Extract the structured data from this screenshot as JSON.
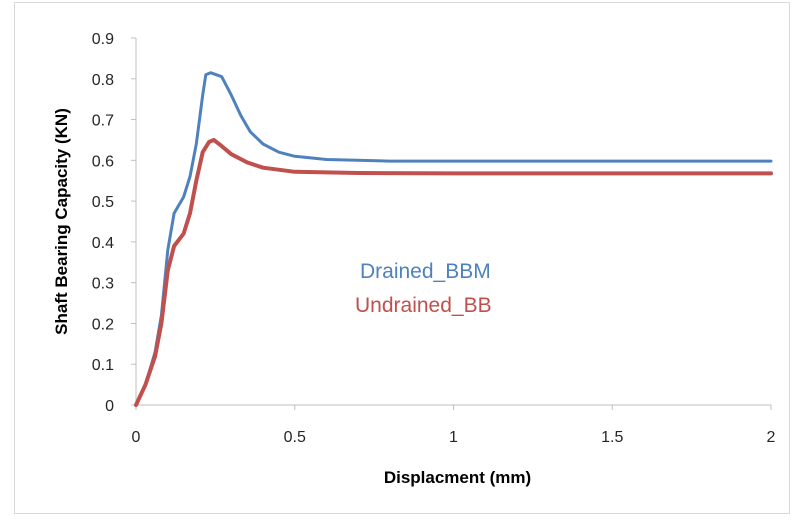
{
  "chart_data": {
    "type": "line",
    "title": "",
    "xlabel": "Displacment (mm)",
    "ylabel": "Shaft Bearing Capacity (KN)",
    "xlim": [
      0,
      2
    ],
    "ylim": [
      0,
      0.9
    ],
    "xticks": [
      0,
      0.5,
      1,
      1.5,
      2
    ],
    "xtick_labels": [
      "0",
      "0.5",
      "1",
      "1.5",
      "2"
    ],
    "yticks": [
      0,
      0.1,
      0.2,
      0.3,
      0.4,
      0.5,
      0.6,
      0.7,
      0.8,
      0.9
    ],
    "ytick_labels": [
      "0",
      "0.1",
      "0.2",
      "0.3",
      "0.4",
      "0.5",
      "0.6",
      "0.7",
      "0.8",
      "0.9"
    ],
    "grid": false,
    "legend_position": "center",
    "series": [
      {
        "name": "Drained_BBM",
        "color": "#4f81bd",
        "points": [
          [
            0,
            0
          ],
          [
            0.03,
            0.05
          ],
          [
            0.06,
            0.13
          ],
          [
            0.08,
            0.22
          ],
          [
            0.1,
            0.38
          ],
          [
            0.12,
            0.47
          ],
          [
            0.15,
            0.51
          ],
          [
            0.17,
            0.56
          ],
          [
            0.19,
            0.64
          ],
          [
            0.21,
            0.76
          ],
          [
            0.22,
            0.81
          ],
          [
            0.235,
            0.815
          ],
          [
            0.27,
            0.805
          ],
          [
            0.3,
            0.76
          ],
          [
            0.33,
            0.71
          ],
          [
            0.36,
            0.67
          ],
          [
            0.4,
            0.64
          ],
          [
            0.45,
            0.62
          ],
          [
            0.5,
            0.61
          ],
          [
            0.6,
            0.602
          ],
          [
            0.8,
            0.598
          ],
          [
            1.0,
            0.598
          ],
          [
            1.5,
            0.598
          ],
          [
            2.0,
            0.598
          ]
        ]
      },
      {
        "name": "Undrained_BB",
        "color": "#c0504d",
        "points": [
          [
            0,
            0
          ],
          [
            0.03,
            0.05
          ],
          [
            0.06,
            0.12
          ],
          [
            0.08,
            0.2
          ],
          [
            0.1,
            0.33
          ],
          [
            0.12,
            0.39
          ],
          [
            0.15,
            0.42
          ],
          [
            0.17,
            0.47
          ],
          [
            0.19,
            0.55
          ],
          [
            0.21,
            0.62
          ],
          [
            0.23,
            0.645
          ],
          [
            0.245,
            0.65
          ],
          [
            0.27,
            0.635
          ],
          [
            0.3,
            0.615
          ],
          [
            0.35,
            0.595
          ],
          [
            0.4,
            0.582
          ],
          [
            0.5,
            0.572
          ],
          [
            0.7,
            0.569
          ],
          [
            1.0,
            0.568
          ],
          [
            1.5,
            0.568
          ],
          [
            2.0,
            0.568
          ]
        ]
      }
    ]
  }
}
